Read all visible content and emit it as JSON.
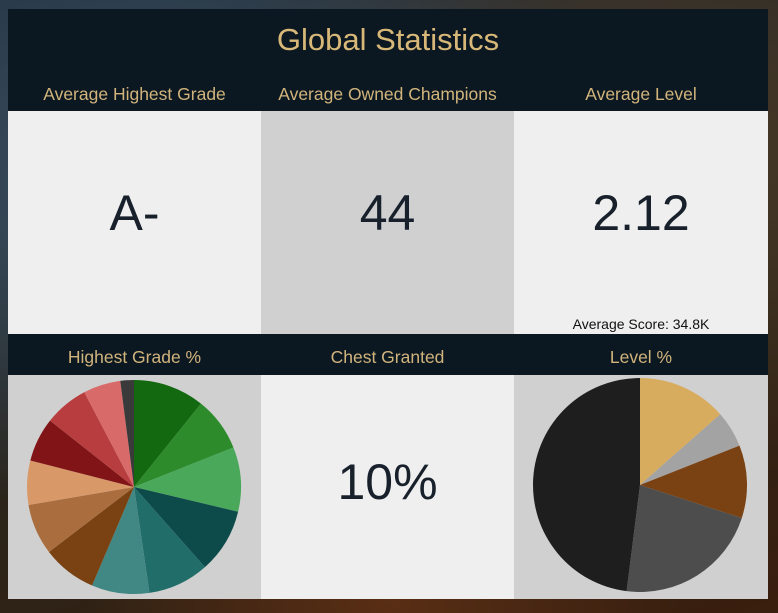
{
  "title": "Global Statistics",
  "headers": {
    "avg_grade": "Average Highest Grade",
    "avg_champions": "Average Owned Champions",
    "avg_level": "Average Level",
    "grade_pct": "Highest Grade %",
    "chest": "Chest Granted",
    "level_pct": "Level %"
  },
  "values": {
    "avg_grade": "A-",
    "avg_champions": "44",
    "avg_level": "2.12",
    "avg_score": "Average Score: 34.8K",
    "chest": "10%"
  },
  "colors": {
    "panel": "#0c1821",
    "header_text": "#d1b47c",
    "value_text": "#17202b"
  },
  "chart_data": [
    {
      "type": "pie",
      "title": "Highest Grade %",
      "slices": [
        {
          "value": 10.5,
          "color": "#12690f"
        },
        {
          "value": 8.0,
          "color": "#2e8b2b"
        },
        {
          "value": 9.5,
          "color": "#4aa85a"
        },
        {
          "value": 9.5,
          "color": "#0d4a4a"
        },
        {
          "value": 9.0,
          "color": "#216d69"
        },
        {
          "value": 8.5,
          "color": "#418783"
        },
        {
          "value": 8.0,
          "color": "#7a4212"
        },
        {
          "value": 7.5,
          "color": "#a96d3e"
        },
        {
          "value": 6.5,
          "color": "#d89868"
        },
        {
          "value": 6.5,
          "color": "#801417"
        },
        {
          "value": 6.5,
          "color": "#b83d3e"
        },
        {
          "value": 5.5,
          "color": "#d86a6a"
        },
        {
          "value": 2.0,
          "color": "#3a3a3a"
        }
      ]
    },
    {
      "type": "pie",
      "title": "Level %",
      "slices": [
        {
          "value": 13.5,
          "color": "#d8ac5e"
        },
        {
          "value": 5.5,
          "color": "#a3a3a3"
        },
        {
          "value": 11.0,
          "color": "#7a4212"
        },
        {
          "value": 22.0,
          "color": "#4d4d4d"
        },
        {
          "value": 48.0,
          "color": "#1e1e1e"
        }
      ]
    }
  ]
}
